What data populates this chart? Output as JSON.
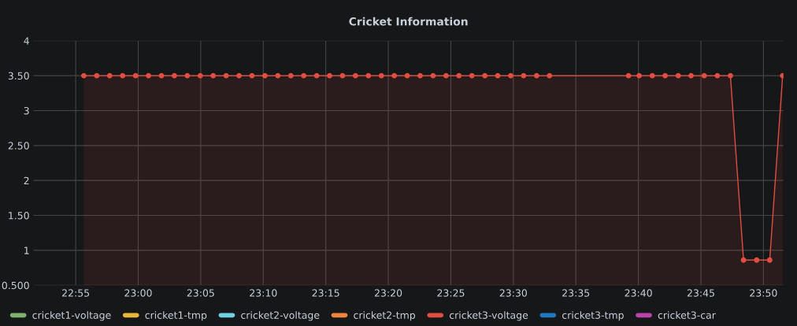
{
  "chart_data": {
    "type": "area",
    "title": "Cricket Information",
    "xlim": [
      22.8604,
      23.86
    ],
    "ylim": [
      0.5,
      4
    ],
    "xticks": [
      {
        "value": 22.9167,
        "label": "22:55"
      },
      {
        "value": 23.0,
        "label": "23:00"
      },
      {
        "value": 23.0833,
        "label": "23:05"
      },
      {
        "value": 23.1667,
        "label": "23:10"
      },
      {
        "value": 23.25,
        "label": "23:15"
      },
      {
        "value": 23.3333,
        "label": "23:20"
      },
      {
        "value": 23.4167,
        "label": "23:25"
      },
      {
        "value": 23.5,
        "label": "23:30"
      },
      {
        "value": 23.5833,
        "label": "23:35"
      },
      {
        "value": 23.6667,
        "label": "23:40"
      },
      {
        "value": 23.75,
        "label": "23:45"
      },
      {
        "value": 23.8333,
        "label": "23:50"
      }
    ],
    "yticks": [
      {
        "value": 0.5,
        "label": "0.500"
      },
      1,
      {
        "value": 1.5,
        "label": "1.50"
      },
      2,
      {
        "value": 2.5,
        "label": "2.50"
      },
      3,
      {
        "value": 3.5,
        "label": "3.50"
      },
      4
    ],
    "grid": true,
    "legend": "bottom",
    "marker": "circle",
    "line_style": "solid",
    "series": [
      {
        "name": "cricket1-voltage",
        "color": "#7eb26d"
      },
      {
        "name": "cricket1-tmp",
        "color": "#eab839"
      },
      {
        "name": "cricket2-voltage",
        "color": "#6ed0e0"
      },
      {
        "name": "cricket2-tmp",
        "color": "#ef843c"
      },
      {
        "name": "cricket3-voltage",
        "color": "#e24d42",
        "x": [
          22.9275,
          22.9447,
          22.962,
          22.9792,
          22.9965,
          23.0137,
          23.031,
          23.0482,
          23.0654,
          23.0827,
          23.0999,
          23.1172,
          23.1344,
          23.1516,
          23.1689,
          23.1861,
          23.2034,
          23.2206,
          23.2379,
          23.2551,
          23.2723,
          23.2896,
          23.3068,
          23.3241,
          23.3413,
          23.3586,
          23.3758,
          23.393,
          23.4103,
          23.4275,
          23.4448,
          23.462,
          23.4792,
          23.4965,
          23.5137,
          23.531,
          23.5482,
          23.6535,
          23.6677,
          23.6852,
          23.7023,
          23.7198,
          23.7369,
          23.7544,
          23.7719,
          23.7893,
          23.8068,
          23.8243,
          23.8417,
          23.8589
        ],
        "values": [
          3.5,
          3.5,
          3.5,
          3.5,
          3.5,
          3.5,
          3.5,
          3.5,
          3.5,
          3.5,
          3.5,
          3.5,
          3.5,
          3.5,
          3.5,
          3.5,
          3.5,
          3.5,
          3.5,
          3.5,
          3.5,
          3.5,
          3.5,
          3.5,
          3.5,
          3.5,
          3.5,
          3.5,
          3.5,
          3.5,
          3.5,
          3.5,
          3.5,
          3.5,
          3.5,
          3.5,
          3.5,
          3.5,
          3.5,
          3.5,
          3.5,
          3.5,
          3.5,
          3.5,
          3.5,
          3.5,
          0.86,
          0.86,
          0.86,
          3.5
        ]
      },
      {
        "name": "cricket3-tmp",
        "color": "#1f78c1"
      },
      {
        "name": "cricket3-car",
        "color": "#ba43a9"
      }
    ]
  }
}
